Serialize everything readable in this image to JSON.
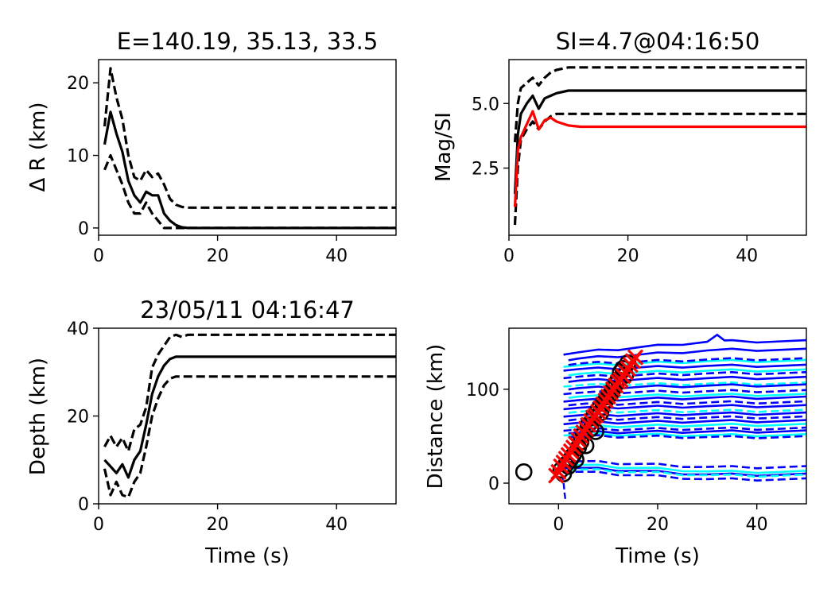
{
  "chart_data": [
    {
      "id": "dr",
      "type": "line",
      "title": "E=140.19, 35.13, 33.5",
      "xlabel": "",
      "ylabel": "Δ R (km)",
      "xlim": [
        0,
        50
      ],
      "ylim": [
        -1,
        23.2
      ],
      "xticks": [
        0,
        20,
        40
      ],
      "yticks": [
        0,
        10,
        20
      ],
      "series": [
        {
          "style": "solid",
          "color": "#000000",
          "x": [
            1,
            2,
            3,
            4,
            5,
            6,
            7,
            8,
            9,
            10,
            11,
            12,
            13,
            14,
            15,
            16,
            20,
            30,
            40,
            50
          ],
          "y": [
            11.5,
            16,
            13,
            10.5,
            6.5,
            4.5,
            3.5,
            5.0,
            4.5,
            4.5,
            2.0,
            1.0,
            0.4,
            0.1,
            0,
            0,
            0,
            0,
            0,
            0
          ]
        },
        {
          "style": "dashed",
          "color": "#000000",
          "x": [
            1,
            2,
            3,
            4,
            5,
            6,
            7,
            8,
            9,
            10,
            11,
            12,
            13,
            14,
            15,
            16,
            20,
            30,
            40,
            50
          ],
          "y": [
            14,
            22,
            18,
            15,
            10,
            7,
            6.5,
            8,
            7,
            7.5,
            6,
            4,
            3.2,
            2.9,
            2.8,
            2.8,
            2.8,
            2.8,
            2.8,
            2.8
          ]
        },
        {
          "style": "dashed",
          "color": "#000000",
          "x": [
            1,
            2,
            3,
            4,
            5,
            6,
            7,
            8,
            9,
            10,
            11,
            12,
            14,
            20,
            30,
            40,
            50
          ],
          "y": [
            8,
            10,
            8,
            6,
            3.5,
            2.0,
            2.0,
            3.5,
            2.0,
            1.0,
            0,
            0,
            0,
            0,
            0,
            0,
            0
          ]
        }
      ]
    },
    {
      "id": "mag",
      "type": "line",
      "title": "SI=4.7@04:16:50",
      "xlabel": "",
      "ylabel": "Mag/SI",
      "xlim": [
        0,
        50
      ],
      "ylim": [
        -0.1,
        6.7
      ],
      "xticks": [
        0,
        20,
        40
      ],
      "yticks": [
        2.5,
        5.0
      ],
      "ytick_labels": [
        "2.5",
        "5.0"
      ],
      "series": [
        {
          "style": "solid",
          "color": "#000000",
          "x": [
            1,
            1.5,
            2,
            3,
            4,
            5,
            6,
            7,
            8,
            10,
            12,
            15,
            20,
            30,
            40,
            50
          ],
          "y": [
            1.5,
            3.8,
            4.6,
            5.0,
            5.3,
            4.8,
            5.2,
            5.3,
            5.4,
            5.5,
            5.5,
            5.5,
            5.5,
            5.5,
            5.5,
            5.5
          ]
        },
        {
          "style": "dashed",
          "color": "#000000",
          "x": [
            1,
            1.5,
            2,
            3,
            4,
            5,
            6,
            7,
            8,
            10,
            12,
            15,
            20,
            30,
            40,
            50
          ],
          "y": [
            3.5,
            5.0,
            5.6,
            5.8,
            6.0,
            5.7,
            6.0,
            6.2,
            6.3,
            6.4,
            6.4,
            6.4,
            6.4,
            6.4,
            6.4,
            6.4
          ]
        },
        {
          "style": "dashed",
          "color": "#000000",
          "x": [
            1,
            1.5,
            2,
            3,
            4,
            5,
            6,
            7,
            8,
            9,
            10,
            12,
            20,
            30,
            40,
            50
          ],
          "y": [
            0.3,
            2.5,
            3.6,
            4.0,
            4.3,
            4.0,
            4.3,
            4.5,
            4.6,
            4.6,
            4.6,
            4.6,
            4.6,
            4.6,
            4.6,
            4.6
          ]
        },
        {
          "style": "solid",
          "color": "#ff0000",
          "x": [
            1,
            1.5,
            2,
            3,
            4,
            5,
            6,
            7,
            8,
            10,
            12,
            15,
            20,
            30,
            40,
            50
          ],
          "y": [
            1.0,
            3.2,
            3.7,
            4.2,
            4.7,
            4.0,
            4.35,
            4.45,
            4.3,
            4.15,
            4.1,
            4.1,
            4.1,
            4.1,
            4.1,
            4.1
          ]
        }
      ]
    },
    {
      "id": "depth",
      "type": "line",
      "title": "23/05/11 04:16:47",
      "xlabel": "Time (s)",
      "ylabel": "Depth (km)",
      "xlim": [
        0,
        50
      ],
      "ylim": [
        0,
        40
      ],
      "xticks": [
        0,
        20,
        40
      ],
      "yticks": [
        0,
        20,
        40
      ],
      "series": [
        {
          "style": "solid",
          "color": "#000000",
          "x": [
            1,
            2,
            3,
            4,
            5,
            6,
            7,
            8,
            9,
            10,
            11,
            12,
            13,
            14,
            15,
            20,
            30,
            40,
            50
          ],
          "y": [
            10,
            8.5,
            7,
            9,
            6,
            10,
            12,
            18,
            25,
            29,
            31.5,
            33,
            33.5,
            33.5,
            33.5,
            33.5,
            33.5,
            33.5,
            33.5
          ]
        },
        {
          "style": "dashed",
          "color": "#000000",
          "x": [
            1,
            2,
            3,
            4,
            5,
            6,
            7,
            8,
            9,
            10,
            11,
            12,
            13,
            14,
            15,
            20,
            30,
            40,
            50
          ],
          "y": [
            13,
            15.5,
            13,
            15,
            12,
            17,
            18,
            22,
            31,
            34,
            36,
            38,
            38.5,
            38,
            38.5,
            38.5,
            38.5,
            38.5,
            38.5
          ]
        },
        {
          "style": "dashed",
          "color": "#000000",
          "x": [
            1,
            2,
            3,
            4,
            5,
            6,
            7,
            8,
            9,
            10,
            11,
            12,
            13,
            14,
            15,
            20,
            30,
            40,
            50
          ],
          "y": [
            8,
            2,
            5,
            2,
            1.5,
            5,
            7,
            13,
            20,
            24,
            27,
            28.5,
            29,
            29,
            29,
            29,
            29,
            29,
            29
          ]
        }
      ]
    },
    {
      "id": "dist",
      "type": "scatter",
      "title": "",
      "xlabel": "Time (s)",
      "ylabel": "Distance (km)",
      "xlim": [
        -10,
        50
      ],
      "ylim": [
        -22,
        165
      ],
      "xticks": [
        0,
        20,
        40
      ],
      "yticks": [
        0,
        100
      ],
      "station_curve_start_x": [
        1.0,
        2.0
      ],
      "station_curves": [
        {
          "color": "#0000ff",
          "style": "solid",
          "y0": 138,
          "y1": 151,
          "bump_x": 32,
          "bump_y": 158
        },
        {
          "color": "#0000ff",
          "style": "solid",
          "y0": 132,
          "y1": 142
        },
        {
          "color": "#00ffff",
          "style": "solid",
          "y0": 125,
          "y1": 130
        },
        {
          "color": "#0000ff",
          "style": "dashed",
          "y0": 127,
          "y1": 132
        },
        {
          "color": "#0000ff",
          "style": "solid",
          "y0": 121,
          "y1": 125
        },
        {
          "color": "#00ffff",
          "style": "solid",
          "y0": 116,
          "y1": 120
        },
        {
          "color": "#0000ff",
          "style": "dashed",
          "y0": 113,
          "y1": 117
        },
        {
          "color": "#0000ff",
          "style": "solid",
          "y0": 109,
          "y1": 112
        },
        {
          "color": "#00ffff",
          "style": "dashed",
          "y0": 104,
          "y1": 106
        },
        {
          "color": "#0000ff",
          "style": "solid",
          "y0": 101,
          "y1": 104
        },
        {
          "color": "#0000ff",
          "style": "dashed",
          "y0": 96,
          "y1": 98
        },
        {
          "color": "#00ffff",
          "style": "solid",
          "y0": 92,
          "y1": 94
        },
        {
          "color": "#0000ff",
          "style": "solid",
          "y0": 88,
          "y1": 91
        },
        {
          "color": "#0000ff",
          "style": "dashed",
          "y0": 84,
          "y1": 86
        },
        {
          "color": "#0000ff",
          "style": "solid",
          "y0": 80,
          "y1": 82
        },
        {
          "color": "#00ffff",
          "style": "dashed",
          "y0": 76,
          "y1": 77
        },
        {
          "color": "#0000ff",
          "style": "solid",
          "y0": 72,
          "y1": 74
        },
        {
          "color": "#0000ff",
          "style": "dashed",
          "y0": 68,
          "y1": 70
        },
        {
          "color": "#0000ff",
          "style": "solid",
          "y0": 64,
          "y1": 66
        },
        {
          "color": "#00ffff",
          "style": "solid",
          "y0": 60,
          "y1": 62
        },
        {
          "color": "#0000ff",
          "style": "dashed",
          "y0": 57,
          "y1": 58
        },
        {
          "color": "#0000ff",
          "style": "solid",
          "y0": 54,
          "y1": 55
        },
        {
          "color": "#00ffff",
          "style": "solid",
          "y0": 52,
          "y1": 51
        },
        {
          "color": "#0000ff",
          "style": "dashed",
          "y0": 50,
          "y1": 49
        },
        {
          "color": "#0000ff",
          "style": "dashed",
          "y0": 24,
          "y1": 17
        },
        {
          "color": "#00ffff",
          "style": "solid",
          "y0": 20,
          "y1": 12
        },
        {
          "color": "#0000ff",
          "style": "solid",
          "y0": 17,
          "y1": 9
        },
        {
          "color": "#00ffff",
          "style": "dashed",
          "y0": 15,
          "y1": 8
        },
        {
          "color": "#0000ff",
          "style": "dashed",
          "y0": 13,
          "y1": 4
        }
      ],
      "picks_circles": {
        "color": "#000000",
        "x": [
          -7,
          0.5,
          1,
          1.5,
          2,
          2.5,
          3,
          3.5,
          4,
          4.5,
          5,
          5.5,
          6,
          6.5,
          7,
          7.5,
          8,
          8.5,
          9,
          9.5,
          10,
          10.5,
          11,
          11.5,
          12,
          12.5,
          13,
          13.5,
          14
        ],
        "y": [
          12,
          14,
          10,
          20,
          18,
          26,
          30,
          25,
          38,
          44,
          52,
          40,
          62,
          58,
          70,
          55,
          78,
          75,
          85,
          88,
          92,
          95,
          100,
          105,
          110,
          118,
          122,
          115,
          128
        ]
      },
      "picks_crosses": {
        "color": "#ff0000",
        "x": [
          -0.5,
          0,
          0.5,
          1,
          1.5,
          2,
          2.5,
          3,
          3.5,
          4,
          4.5,
          5,
          5.5,
          6,
          6.5,
          7,
          7.5,
          8,
          8.5,
          9,
          9.5,
          10,
          10.5,
          11,
          11.5,
          12,
          12.5,
          13,
          13.5,
          14,
          14.5,
          15,
          15.5
        ],
        "y": [
          8,
          12,
          18,
          22,
          26,
          30,
          34,
          38,
          42,
          46,
          50,
          54,
          58,
          62,
          66,
          70,
          72,
          76,
          80,
          84,
          88,
          92,
          96,
          100,
          104,
          108,
          110,
          114,
          118,
          122,
          126,
          130,
          134
        ]
      }
    }
  ]
}
